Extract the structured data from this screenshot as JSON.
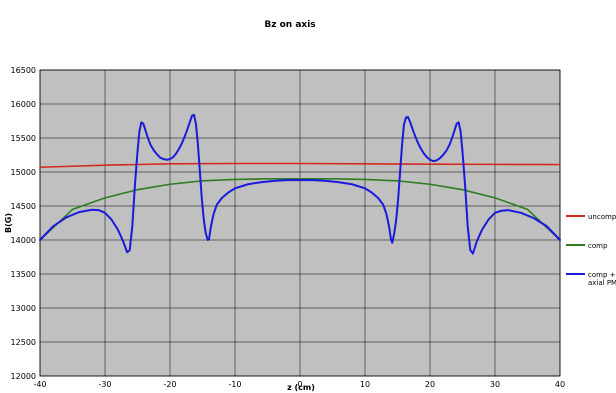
{
  "chart_data": {
    "type": "line",
    "title": "Bz on axis",
    "xlabel": "z (cm)",
    "ylabel": "B(G)",
    "xlim": [
      -40,
      40
    ],
    "ylim": [
      12000,
      16500
    ],
    "xticks": [
      -40,
      -30,
      -20,
      -10,
      0,
      10,
      20,
      30,
      40
    ],
    "yticks": [
      12000,
      12500,
      13000,
      13500,
      14000,
      14500,
      15000,
      15500,
      16000,
      16500
    ],
    "grid": true,
    "legend_position": "right",
    "plot_background": "#c0c0c0",
    "series": [
      {
        "name": "uncomp",
        "color": "#d42a1e",
        "x": [
          -40,
          -30,
          -20,
          -10,
          0,
          10,
          20,
          30,
          40
        ],
        "y": [
          15070,
          15100,
          15120,
          15125,
          15125,
          15120,
          15115,
          15112,
          15110
        ]
      },
      {
        "name": "comp",
        "color": "#2e7d20",
        "x": [
          -40,
          -35,
          -30,
          -25,
          -20,
          -15,
          -10,
          -5,
          0,
          5,
          10,
          15,
          20,
          25,
          30,
          35,
          40
        ],
        "y": [
          14000,
          14450,
          14620,
          14740,
          14820,
          14870,
          14890,
          14900,
          14900,
          14900,
          14890,
          14870,
          14820,
          14740,
          14620,
          14450,
          14000
        ]
      },
      {
        "name": "comp + axial PM",
        "color": "#1a1adc",
        "x": [
          -40,
          -38,
          -36,
          -34,
          -32,
          -31,
          -30,
          -29,
          -28,
          -27.2,
          -26.6,
          -26.2,
          -25.8,
          -25.4,
          -25,
          -24.7,
          -24.4,
          -24.1,
          -23.8,
          -23.4,
          -23,
          -22.5,
          -22,
          -21.5,
          -21,
          -20.5,
          -20,
          -19.5,
          -19,
          -18.5,
          -18,
          -17.5,
          -17,
          -16.6,
          -16.3,
          -16,
          -15.7,
          -15.4,
          -15.1,
          -14.8,
          -14.5,
          -14.2,
          -14,
          -13.7,
          -13.3,
          -12.8,
          -12,
          -11,
          -10,
          -8,
          -6,
          -4,
          -2,
          0,
          2,
          4,
          6,
          8,
          10,
          11,
          12,
          12.8,
          13.3,
          13.7,
          14,
          14.2,
          14.5,
          14.8,
          15.1,
          15.4,
          15.7,
          16,
          16.3,
          16.6,
          17,
          17.5,
          18,
          18.5,
          19,
          19.5,
          20,
          20.5,
          21,
          21.5,
          22,
          22.5,
          23,
          23.4,
          23.8,
          24.1,
          24.4,
          24.7,
          25,
          25.4,
          25.8,
          26.2,
          26.6,
          27.2,
          28,
          29,
          30,
          31,
          32,
          34,
          36,
          38,
          40
        ],
        "y": [
          14000,
          14200,
          14330,
          14410,
          14445,
          14440,
          14400,
          14300,
          14150,
          13980,
          13820,
          13850,
          14200,
          14800,
          15300,
          15600,
          15730,
          15710,
          15620,
          15500,
          15400,
          15320,
          15260,
          15210,
          15190,
          15180,
          15190,
          15220,
          15280,
          15360,
          15460,
          15580,
          15720,
          15830,
          15840,
          15700,
          15400,
          15000,
          14600,
          14300,
          14100,
          14000,
          14010,
          14200,
          14380,
          14520,
          14620,
          14700,
          14760,
          14820,
          14850,
          14870,
          14880,
          14880,
          14880,
          14870,
          14850,
          14820,
          14760,
          14700,
          14620,
          14520,
          14380,
          14200,
          14010,
          13960,
          14100,
          14300,
          14600,
          15000,
          15400,
          15700,
          15800,
          15810,
          15720,
          15580,
          15460,
          15360,
          15280,
          15220,
          15180,
          15160,
          15170,
          15200,
          15250,
          15310,
          15400,
          15500,
          15620,
          15710,
          15730,
          15600,
          15300,
          14800,
          14200,
          13850,
          13800,
          13980,
          14150,
          14300,
          14400,
          14430,
          14440,
          14400,
          14320,
          14200,
          14000
        ]
      }
    ]
  }
}
